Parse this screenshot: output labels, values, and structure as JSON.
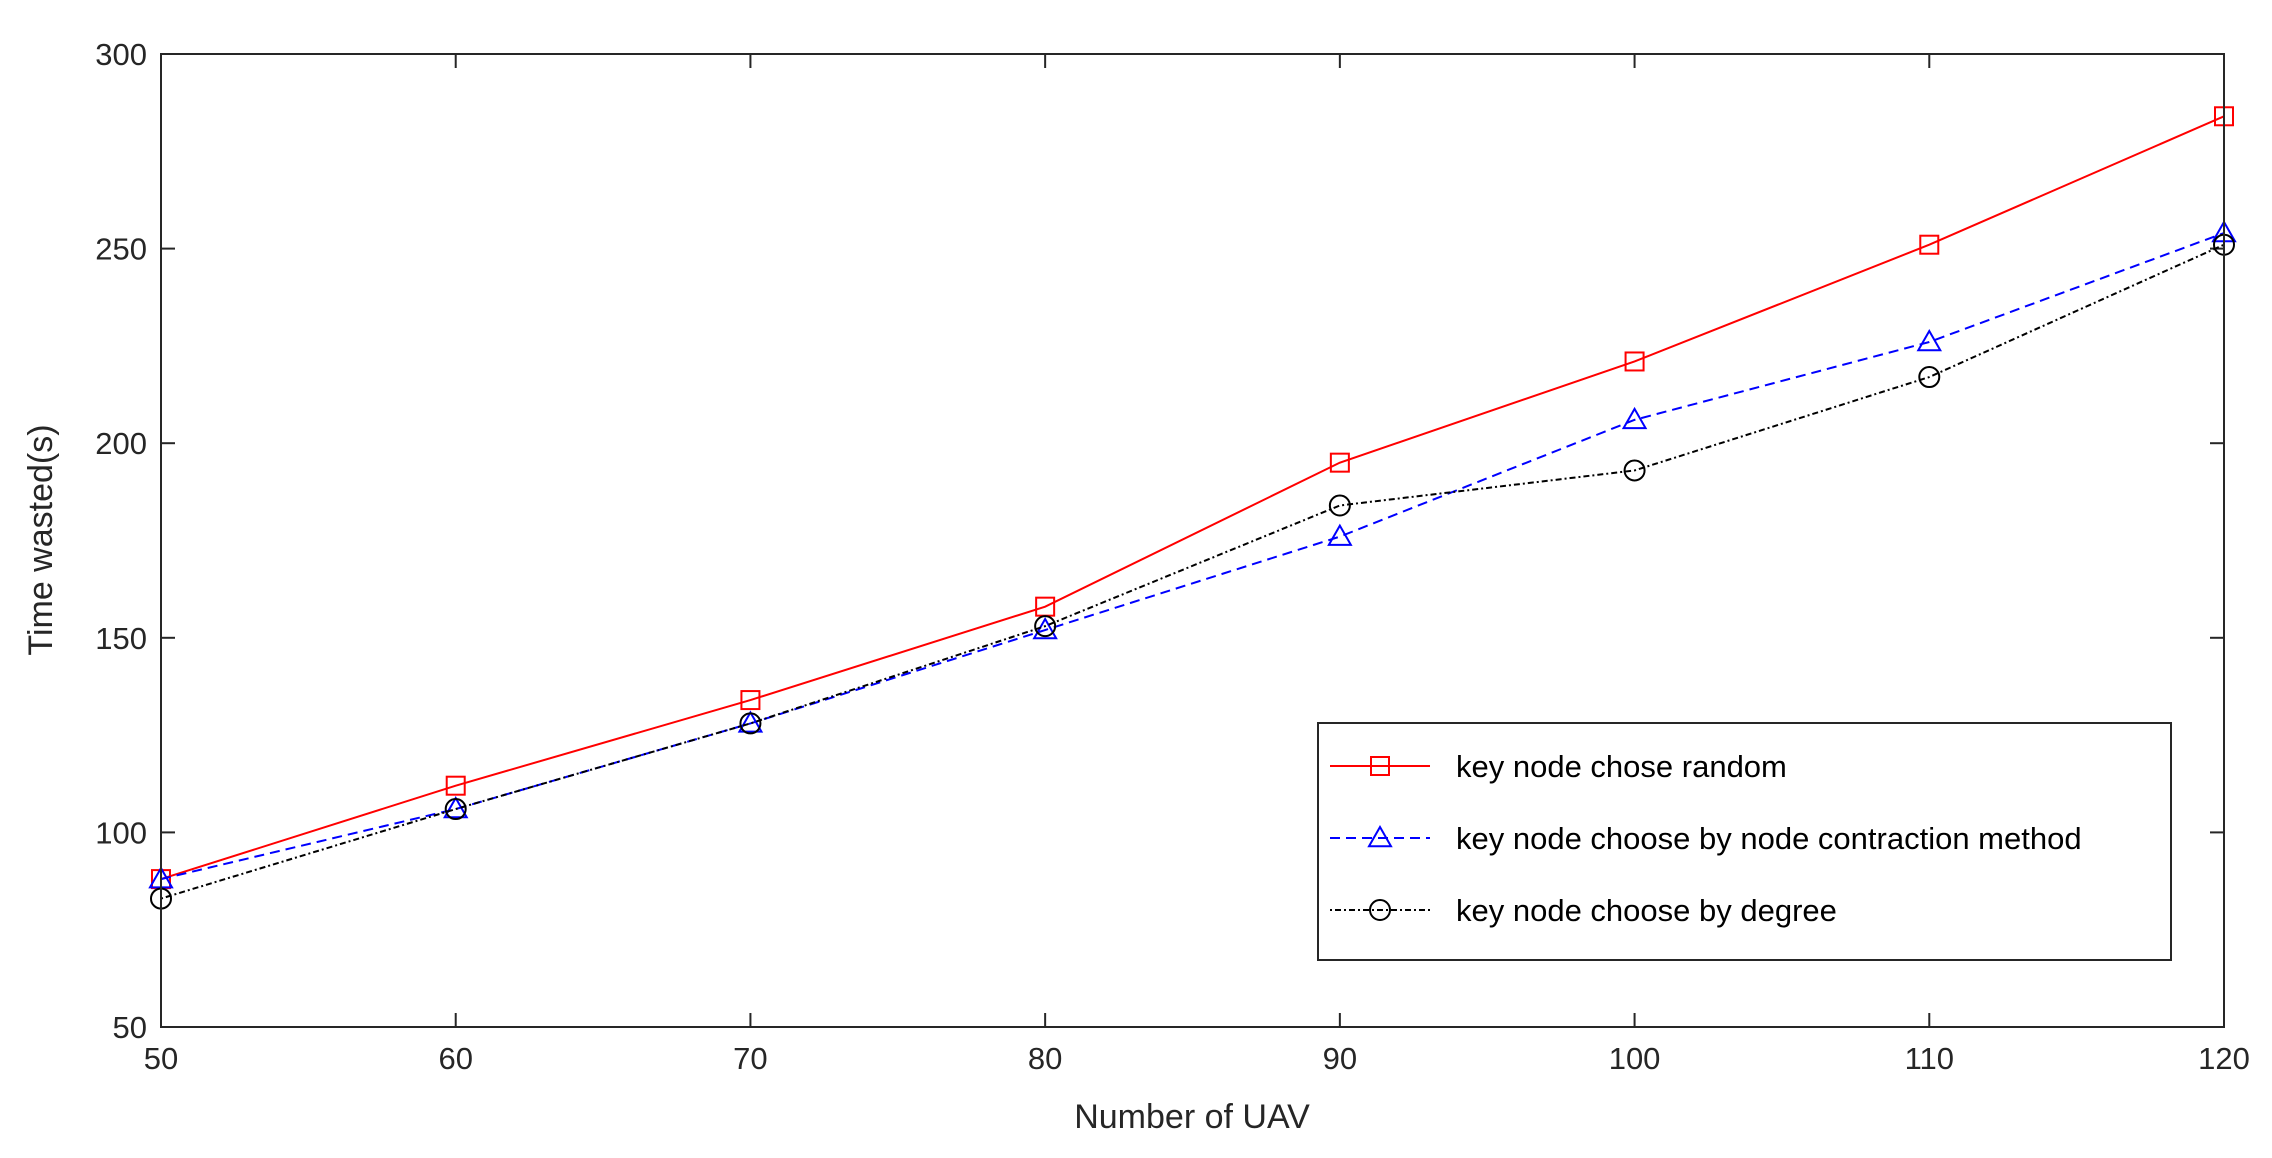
{
  "chart_data": {
    "type": "line",
    "x": [
      50,
      60,
      70,
      80,
      90,
      100,
      110,
      120
    ],
    "xlabel": "Number of UAV",
    "ylabel": "Time wasted(s)",
    "xlim": [
      50,
      120
    ],
    "ylim": [
      50,
      300
    ],
    "xticks": [
      "50",
      "60",
      "70",
      "80",
      "90",
      "100",
      "110",
      "120"
    ],
    "yticks": [
      "50",
      "100",
      "150",
      "200",
      "250",
      "300"
    ],
    "grid": false,
    "legend_position": "bottom-right",
    "series": [
      {
        "name": "key node chose random",
        "values": [
          88,
          112,
          134,
          158,
          195,
          221,
          251,
          284
        ],
        "color": "#ff0000",
        "line_style": "solid",
        "marker": "square"
      },
      {
        "name": "key node choose by node contraction method",
        "values": [
          88,
          106,
          128,
          152,
          176,
          206,
          226,
          254
        ],
        "color": "#0000ff",
        "line_style": "dashed",
        "marker": "triangle"
      },
      {
        "name": "key node choose by degree",
        "values": [
          83,
          106,
          128,
          153,
          184,
          193,
          217,
          251
        ],
        "color": "#000000",
        "line_style": "dotted",
        "marker": "circle"
      }
    ]
  }
}
